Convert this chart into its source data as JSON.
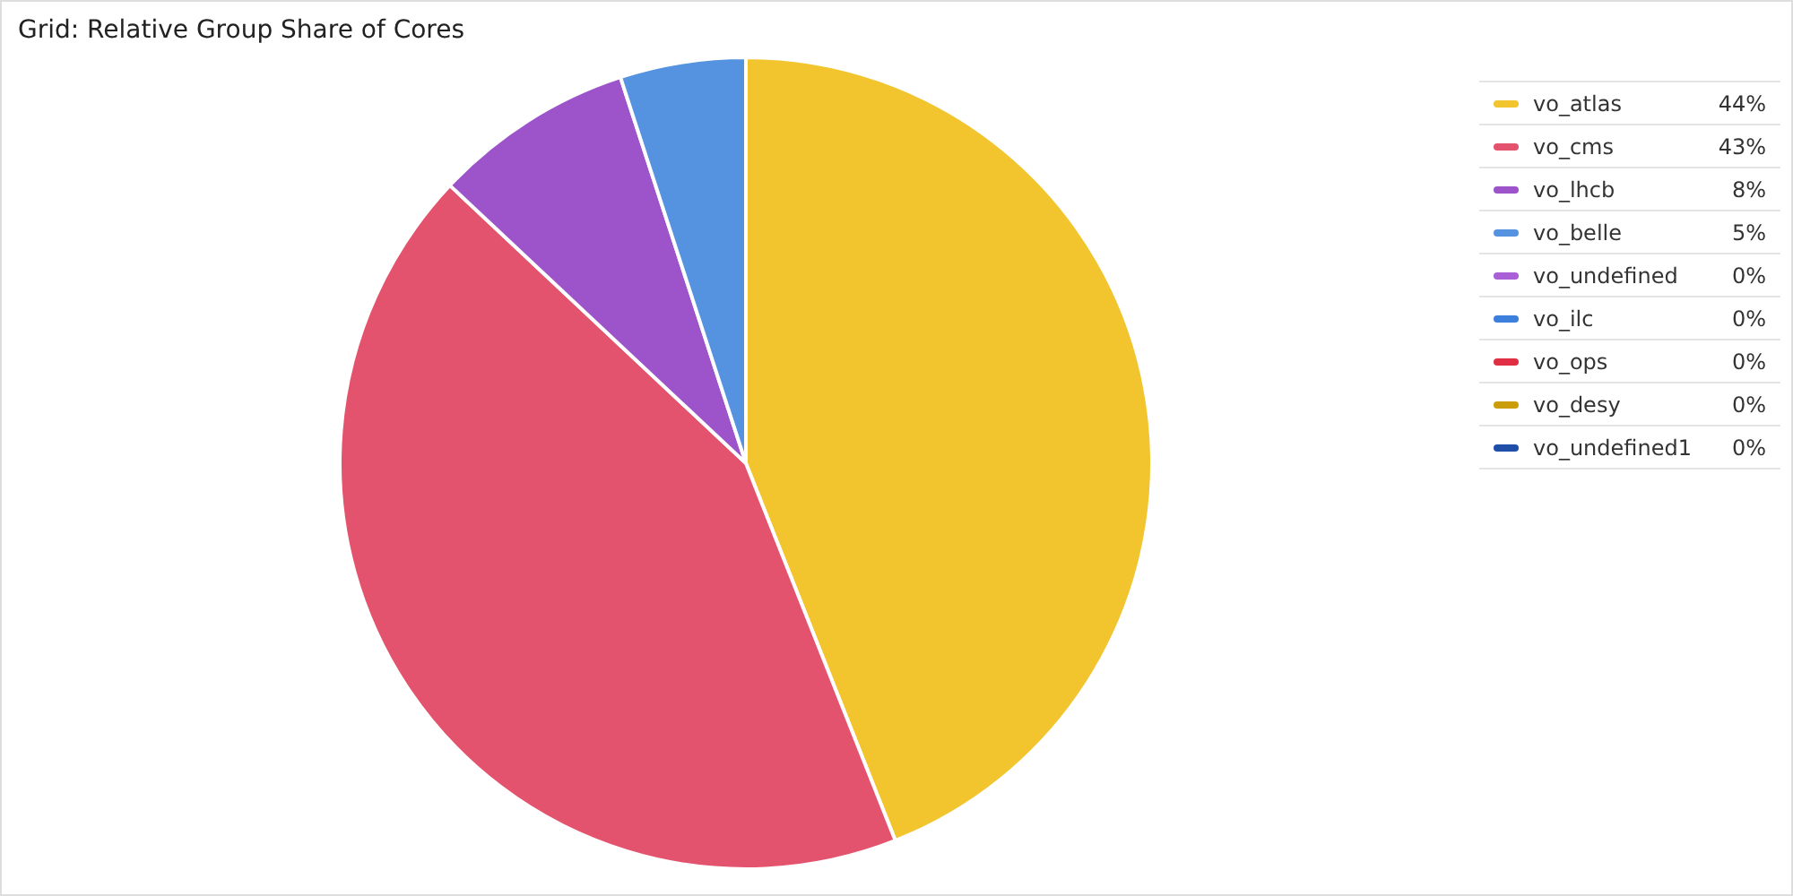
{
  "chart_data": {
    "type": "pie",
    "title": "Grid: Relative Group Share of Cores",
    "categories": [
      "vo_atlas",
      "vo_cms",
      "vo_lhcb",
      "vo_belle",
      "vo_undefined",
      "vo_ilc",
      "vo_ops",
      "vo_desy",
      "vo_undefined1"
    ],
    "values": [
      44,
      43,
      8,
      5,
      0,
      0,
      0,
      0,
      0
    ],
    "colors": [
      "#f2c42e",
      "#e3536e",
      "#9d53c9",
      "#5592e0",
      "#a95fd6",
      "#3d7fdc",
      "#e02f44",
      "#cc9d0a",
      "#1f4fa8"
    ],
    "value_labels": [
      "44%",
      "43%",
      "8%",
      "5%",
      "0%",
      "0%",
      "0%",
      "0%",
      "0%"
    ],
    "legend": "top right"
  }
}
